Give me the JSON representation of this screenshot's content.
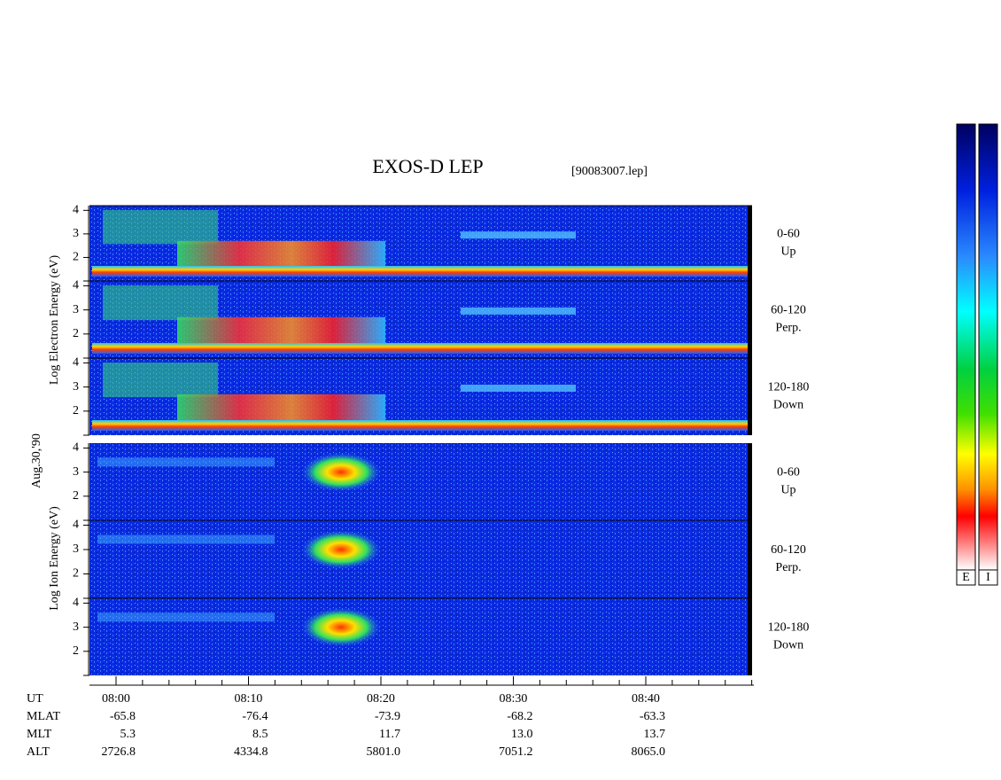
{
  "title": "EXOS-D LEP",
  "file": "[90083007.lep]",
  "date": "Aug.30,'90",
  "electron_axis_label": "Log  Electron  Energy (eV)",
  "ion_axis_label": "Log  Ion  Energy (eV)",
  "ylim": [
    1,
    4.2
  ],
  "yticks": [
    2,
    3,
    4
  ],
  "panels": [
    {
      "range": "0-60",
      "direction": "Up"
    },
    {
      "range": "60-120",
      "direction": "Perp."
    },
    {
      "range": "120-180",
      "direction": "Down"
    },
    {
      "range": "0-60",
      "direction": "Up"
    },
    {
      "range": "60-120",
      "direction": "Perp."
    },
    {
      "range": "120-180",
      "direction": "Down"
    }
  ],
  "time_axis": {
    "label": "UT",
    "ticks": [
      "08:00",
      "08:10",
      "08:20",
      "08:30",
      "08:40"
    ]
  },
  "rows": [
    {
      "label": "MLAT",
      "values": [
        "-65.8",
        "-76.4",
        "-73.9",
        "-68.2",
        "-63.3"
      ]
    },
    {
      "label": "MLT",
      "values": [
        "5.3",
        "8.5",
        "11.7",
        "13.0",
        "13.7"
      ]
    },
    {
      "label": "ALT",
      "values": [
        "2726.8",
        "4334.8",
        "5801.0",
        "7051.2",
        "8065.0"
      ]
    }
  ],
  "colorbars": [
    "E",
    "I"
  ]
}
